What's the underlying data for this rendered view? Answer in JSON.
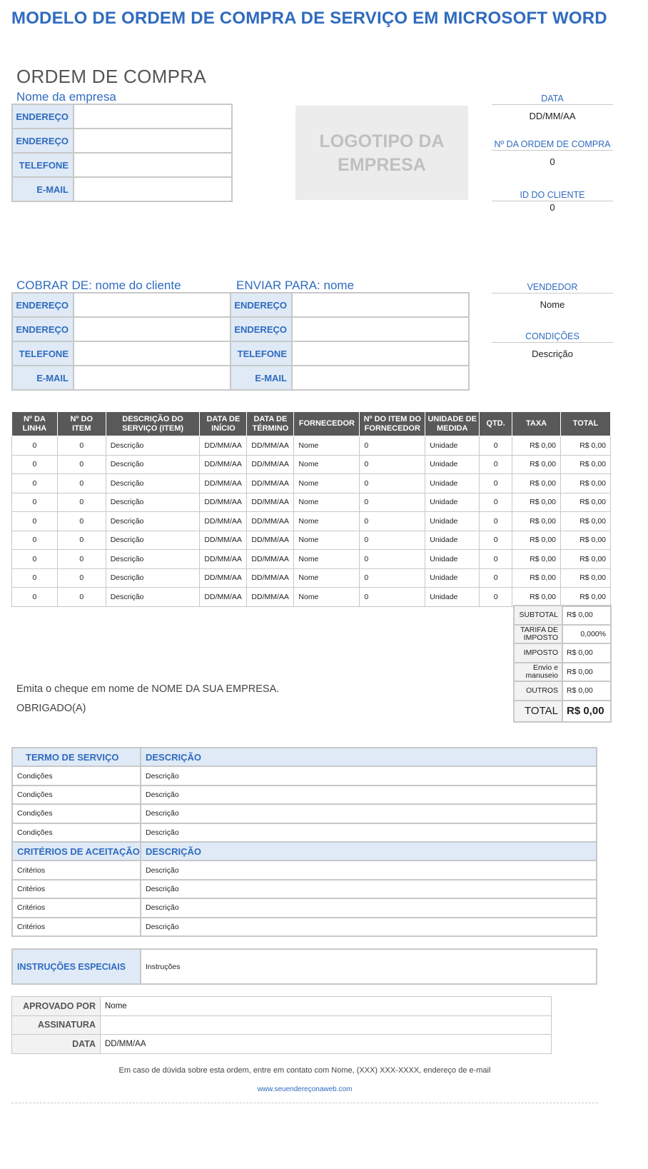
{
  "doc_title": "MODELO DE ORDEM DE COMPRA DE SERVIÇO EM MICROSOFT WORD",
  "po_heading": "ORDEM DE COMPRA",
  "company": {
    "name": "Nome da empresa",
    "rows": [
      "ENDEREÇO",
      "ENDEREÇO",
      "TELEFONE",
      "E-MAIL"
    ]
  },
  "logo_line1": "LOGOTIPO DA",
  "logo_line2": "EMPRESA",
  "side": {
    "date_label": "DATA",
    "date_value": "DD/MM/AA",
    "po_label": "Nº DA ORDEM DE COMPRA",
    "po_value": "0",
    "client_label": "ID DO CLIENTE",
    "client_value": "0",
    "vendor_label": "VENDEDOR",
    "vendor_value": "Nome",
    "terms_label": "CONDIÇÕES",
    "terms_value": "Descrição"
  },
  "bill_to": {
    "title": "COBRAR DE: nome do cliente",
    "rows": [
      "ENDEREÇO",
      "ENDEREÇO",
      "TELEFONE",
      "E-MAIL"
    ]
  },
  "ship_to": {
    "title": "ENVIAR PARA: nome",
    "rows": [
      "ENDEREÇO",
      "ENDEREÇO",
      "TELEFONE",
      "E-MAIL"
    ]
  },
  "items": {
    "headers": [
      [
        "Nº DA",
        "LINHA"
      ],
      [
        "Nº DO",
        "ITEM"
      ],
      [
        "DESCRIÇÃO DO",
        "SERVIÇO (ITEM)"
      ],
      [
        "DATA DE",
        "INÍCIO"
      ],
      [
        "DATA DE",
        "TÉRMINO"
      ],
      [
        "FORNECEDOR",
        ""
      ],
      [
        "Nº DO ITEM DO",
        "FORNECEDOR"
      ],
      [
        "UNIDADE DE",
        "MEDIDA"
      ],
      [
        "QTD.",
        ""
      ],
      [
        "TAXA",
        ""
      ],
      [
        "TOTAL",
        ""
      ]
    ],
    "rows": [
      [
        "0",
        "0",
        "Descrição",
        "DD/MM/AA",
        "DD/MM/AA",
        "Nome",
        "0",
        "Unidade",
        "0",
        "R$ 0,00",
        "R$ 0,00"
      ],
      [
        "0",
        "0",
        "Descrição",
        "DD/MM/AA",
        "DD/MM/AA",
        "Nome",
        "0",
        "Unidade",
        "0",
        "R$ 0,00",
        "R$ 0,00"
      ],
      [
        "0",
        "0",
        "Descrição",
        "DD/MM/AA",
        "DD/MM/AA",
        "Nome",
        "0",
        "Unidade",
        "0",
        "R$ 0,00",
        "R$ 0,00"
      ],
      [
        "0",
        "0",
        "Descrição",
        "DD/MM/AA",
        "DD/MM/AA",
        "Nome",
        "0",
        "Unidade",
        "0",
        "R$ 0,00",
        "R$ 0,00"
      ],
      [
        "0",
        "0",
        "Descrição",
        "DD/MM/AA",
        "DD/MM/AA",
        "Nome",
        "0",
        "Unidade",
        "0",
        "R$ 0,00",
        "R$ 0,00"
      ],
      [
        "0",
        "0",
        "Descrição",
        "DD/MM/AA",
        "DD/MM/AA",
        "Nome",
        "0",
        "Unidade",
        "0",
        "R$ 0,00",
        "R$ 0,00"
      ],
      [
        "0",
        "0",
        "Descrição",
        "DD/MM/AA",
        "DD/MM/AA",
        "Nome",
        "0",
        "Unidade",
        "0",
        "R$ 0,00",
        "R$ 0,00"
      ],
      [
        "0",
        "0",
        "Descrição",
        "DD/MM/AA",
        "DD/MM/AA",
        "Nome",
        "0",
        "Unidade",
        "0",
        "R$ 0,00",
        "R$ 0,00"
      ],
      [
        "0",
        "0",
        "Descrição",
        "DD/MM/AA",
        "DD/MM/AA",
        "Nome",
        "0",
        "Unidade",
        "0",
        "R$ 0,00",
        "R$ 0,00"
      ]
    ]
  },
  "totals": [
    {
      "label": "SUBTOTAL",
      "value": "R$ 0,00",
      "align": "left"
    },
    {
      "label": "TARIFA DE IMPOSTO",
      "value": "0,000%",
      "align": "right"
    },
    {
      "label": "IMPOSTO",
      "value": "R$ 0,00",
      "align": "left"
    },
    {
      "label": "Envio e manuseio",
      "value": "R$ 0,00",
      "align": "left"
    },
    {
      "label": "OUTROS",
      "value": "R$ 0,00",
      "align": "left"
    }
  ],
  "grand_total": {
    "label": "TOTAL",
    "value": "R$ 0,00"
  },
  "check_note": "Emita o cheque em nome de NOME DA SUA EMPRESA.",
  "thanks": "OBRIGADO(A)",
  "terms": {
    "service_header": "TERMO DE SERVIÇO",
    "service_desc_header": "DESCRIÇÃO",
    "service_rows": [
      [
        "Condições",
        "Descrição"
      ],
      [
        "Condições",
        "Descrição"
      ],
      [
        "Condições",
        "Descrição"
      ],
      [
        "Condições",
        "Descrição"
      ]
    ],
    "criteria_header": "CRITÉRIOS DE ACEITAÇÃO",
    "criteria_desc_header": "DESCRIÇÃO",
    "criteria_rows": [
      [
        "Critérios",
        "Descrição"
      ],
      [
        "Critérios",
        "Descrição"
      ],
      [
        "Critérios",
        "Descrição"
      ],
      [
        "Critérios",
        "Descrição"
      ]
    ]
  },
  "special": {
    "label": "INSTRUÇÕES ESPECIAIS",
    "value": "Instruções"
  },
  "approval": [
    {
      "label": "APROVADO POR",
      "value": "Nome"
    },
    {
      "label": "ASSINATURA",
      "value": ""
    },
    {
      "label": "DATA",
      "value": "DD/MM/AA"
    }
  ],
  "footer": {
    "contact": "Em caso de dúvida sobre esta ordem, entre em contato com Nome, (XXX) XXX-XXXX, endereço de e-mail",
    "website": "www.seuendereçonaweb.com"
  }
}
